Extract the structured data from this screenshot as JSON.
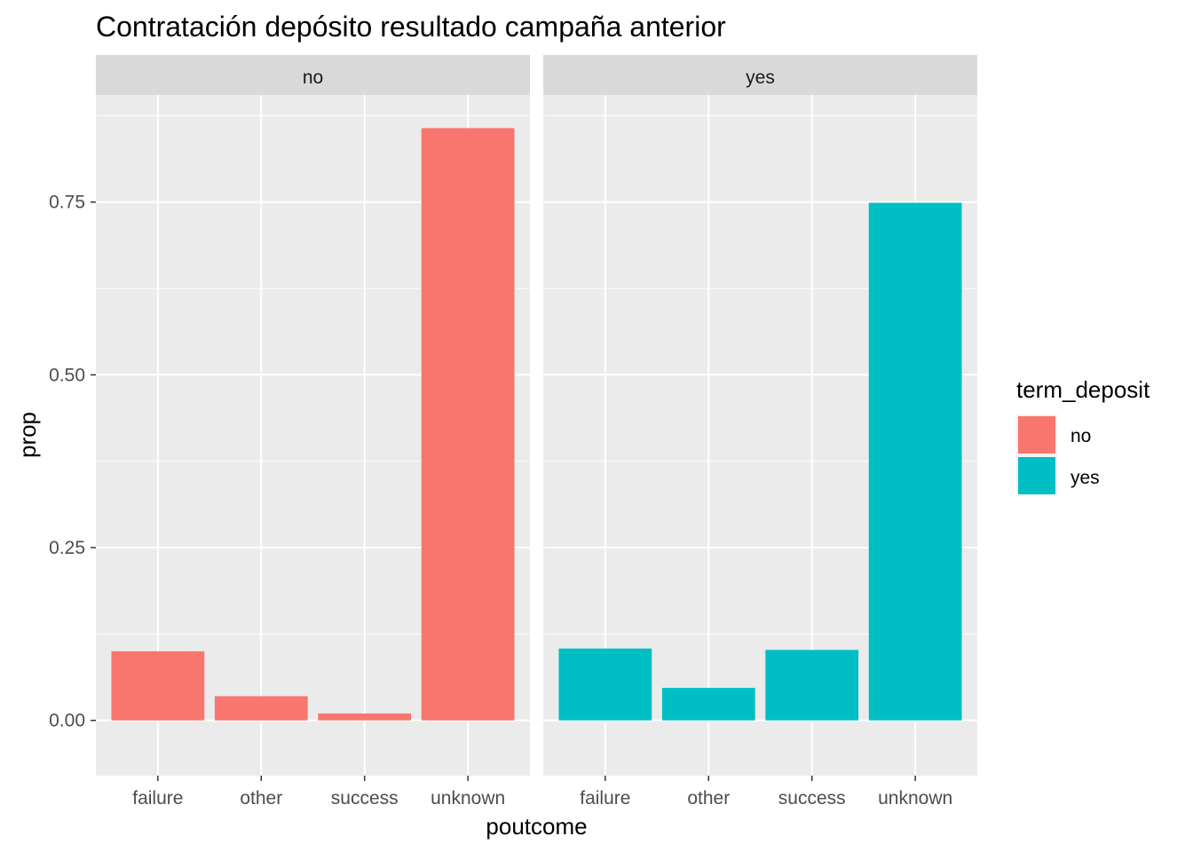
{
  "chart_data": {
    "type": "bar",
    "title": "Contratación depósito resultado campaña anterior",
    "xlabel": "poutcome",
    "ylabel": "prop",
    "ylim": [
      -0.08,
      0.905
    ],
    "yticks": [
      0.0,
      0.25,
      0.5,
      0.75
    ],
    "ytick_labels": [
      "0.00",
      "0.25",
      "0.50",
      "0.75"
    ],
    "categories": [
      "failure",
      "other",
      "success",
      "unknown"
    ],
    "grid": true,
    "legend": {
      "title": "term_deposit",
      "position": "right",
      "items": [
        {
          "label": "no",
          "color": "#F8766D"
        },
        {
          "label": "yes",
          "color": "#00BFC4"
        }
      ]
    },
    "facets": [
      {
        "label": "no",
        "fill": "#F8766D",
        "values": [
          0.1,
          0.035,
          0.01,
          0.857
        ]
      },
      {
        "label": "yes",
        "fill": "#00BFC4",
        "values": [
          0.104,
          0.047,
          0.102,
          0.749
        ]
      }
    ]
  }
}
